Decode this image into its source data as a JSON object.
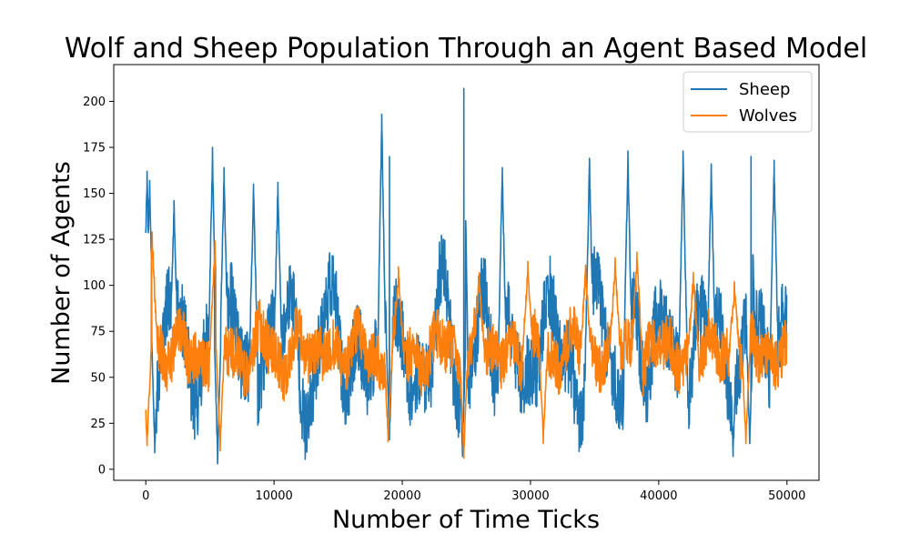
{
  "chart_data": {
    "type": "line",
    "title": "Wolf and Sheep Population Through an Agent Based Model",
    "xlabel": "Number of Time Ticks",
    "ylabel": "Number of Agents",
    "xlim": [
      -2500,
      52500
    ],
    "ylim": [
      -6,
      220
    ],
    "xticks": [
      0,
      10000,
      20000,
      30000,
      40000,
      50000
    ],
    "yticks": [
      0,
      25,
      50,
      75,
      100,
      125,
      150,
      175,
      200
    ],
    "grid": false,
    "legend_position": "top-right",
    "x_start": 0,
    "x_end": 50000,
    "series": [
      {
        "name": "Sheep",
        "color": "#1f77b4",
        "min": 3,
        "max": 207,
        "peaks": [
          [
            100,
            162
          ],
          [
            300,
            157
          ],
          [
            2200,
            146
          ],
          [
            5200,
            175
          ],
          [
            6100,
            164
          ],
          [
            8400,
            155
          ],
          [
            10300,
            156
          ],
          [
            18400,
            193
          ],
          [
            19000,
            170
          ],
          [
            24800,
            207
          ],
          [
            27800,
            164
          ],
          [
            34600,
            169
          ],
          [
            37600,
            173
          ],
          [
            41900,
            173
          ],
          [
            44100,
            166
          ],
          [
            47200,
            170
          ],
          [
            49000,
            168
          ]
        ],
        "troughs": [
          [
            700,
            9
          ],
          [
            5600,
            3
          ],
          [
            19000,
            16
          ],
          [
            24700,
            7
          ],
          [
            45800,
            7
          ],
          [
            47100,
            14
          ]
        ]
      },
      {
        "name": "Wolves",
        "color": "#ff7f0e",
        "min": 6,
        "max": 129,
        "peaks": [
          [
            500,
            129
          ],
          [
            5400,
            124
          ],
          [
            19700,
            110
          ],
          [
            26000,
            107
          ],
          [
            29800,
            113
          ],
          [
            34300,
            111
          ],
          [
            36600,
            115
          ],
          [
            38300,
            118
          ],
          [
            42700,
            107
          ],
          [
            45900,
            102
          ]
        ],
        "troughs": [
          [
            100,
            13
          ],
          [
            5800,
            10
          ],
          [
            18900,
            15
          ],
          [
            24800,
            6
          ],
          [
            31000,
            14
          ],
          [
            46800,
            14
          ]
        ]
      }
    ]
  }
}
